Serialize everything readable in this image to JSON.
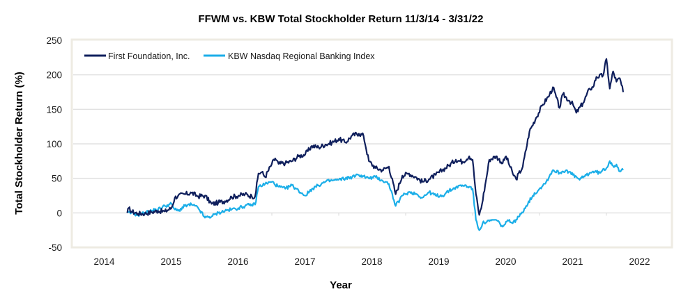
{
  "chart_data": {
    "type": "line",
    "title": "FFWM vs. KBW Total Stockholder Return 11/3/14 - 3/31/22",
    "xlabel": "Year",
    "ylabel": "Total Stockholder Return (%)",
    "xlim": [
      2014,
      2023
    ],
    "ylim": [
      -50,
      250
    ],
    "x_ticks": [
      "2014",
      "2015",
      "2016",
      "2017",
      "2018",
      "2019",
      "2020",
      "2021",
      "2022"
    ],
    "y_ticks": [
      250,
      200,
      150,
      100,
      50,
      0,
      -50
    ],
    "grid": "horizontal",
    "legend_position": "top-left",
    "series": [
      {
        "name": "First Foundation, Inc.",
        "color": "#0F1F5C",
        "points": [
          [
            2014.84,
            0
          ],
          [
            2014.86,
            7
          ],
          [
            2014.9,
            2
          ],
          [
            2015.0,
            -1
          ],
          [
            2015.1,
            -1
          ],
          [
            2015.2,
            1
          ],
          [
            2015.3,
            3
          ],
          [
            2015.4,
            2
          ],
          [
            2015.5,
            7
          ],
          [
            2015.55,
            22
          ],
          [
            2015.6,
            25
          ],
          [
            2015.7,
            27
          ],
          [
            2015.8,
            29
          ],
          [
            2015.9,
            24
          ],
          [
            2016.0,
            25
          ],
          [
            2016.1,
            13
          ],
          [
            2016.2,
            15
          ],
          [
            2016.3,
            17
          ],
          [
            2016.4,
            23
          ],
          [
            2016.5,
            25
          ],
          [
            2016.6,
            27
          ],
          [
            2016.7,
            24
          ],
          [
            2016.75,
            24
          ],
          [
            2016.8,
            57
          ],
          [
            2016.85,
            59
          ],
          [
            2016.9,
            52
          ],
          [
            2017.0,
            71
          ],
          [
            2017.05,
            79
          ],
          [
            2017.1,
            71
          ],
          [
            2017.2,
            72
          ],
          [
            2017.3,
            75
          ],
          [
            2017.4,
            82
          ],
          [
            2017.5,
            85
          ],
          [
            2017.6,
            97
          ],
          [
            2017.7,
            95
          ],
          [
            2017.8,
            99
          ],
          [
            2017.9,
            102
          ],
          [
            2018.0,
            107
          ],
          [
            2018.1,
            102
          ],
          [
            2018.2,
            112
          ],
          [
            2018.3,
            115
          ],
          [
            2018.37,
            112
          ],
          [
            2018.45,
            75
          ],
          [
            2018.55,
            65
          ],
          [
            2018.65,
            62
          ],
          [
            2018.75,
            67
          ],
          [
            2018.85,
            27
          ],
          [
            2018.95,
            54
          ],
          [
            2019.05,
            57
          ],
          [
            2019.15,
            52
          ],
          [
            2019.25,
            45
          ],
          [
            2019.35,
            49
          ],
          [
            2019.45,
            55
          ],
          [
            2019.55,
            62
          ],
          [
            2019.65,
            69
          ],
          [
            2019.75,
            77
          ],
          [
            2019.85,
            74
          ],
          [
            2019.95,
            82
          ],
          [
            2020.0,
            77
          ],
          [
            2020.05,
            27
          ],
          [
            2020.1,
            -3
          ],
          [
            2020.13,
            7
          ],
          [
            2020.2,
            47
          ],
          [
            2020.25,
            77
          ],
          [
            2020.35,
            82
          ],
          [
            2020.45,
            72
          ],
          [
            2020.5,
            82
          ],
          [
            2020.6,
            57
          ],
          [
            2020.65,
            49
          ],
          [
            2020.75,
            67
          ],
          [
            2020.85,
            118
          ],
          [
            2020.95,
            138
          ],
          [
            2021.05,
            157
          ],
          [
            2021.15,
            171
          ],
          [
            2021.2,
            182
          ],
          [
            2021.3,
            152
          ],
          [
            2021.35,
            172
          ],
          [
            2021.45,
            162
          ],
          [
            2021.5,
            157
          ],
          [
            2021.55,
            145
          ],
          [
            2021.65,
            159
          ],
          [
            2021.75,
            180
          ],
          [
            2021.8,
            182
          ],
          [
            2021.85,
            197
          ],
          [
            2021.95,
            199
          ],
          [
            2022.0,
            223
          ],
          [
            2022.05,
            180
          ],
          [
            2022.1,
            205
          ],
          [
            2022.15,
            190
          ],
          [
            2022.2,
            195
          ],
          [
            2022.25,
            175
          ]
        ]
      },
      {
        "name": "KBW Nasdaq Regional Banking Index",
        "color": "#1BAEE8",
        "points": [
          [
            2014.84,
            0
          ],
          [
            2014.9,
            0
          ],
          [
            2015.0,
            -3
          ],
          [
            2015.1,
            0
          ],
          [
            2015.2,
            3
          ],
          [
            2015.3,
            5
          ],
          [
            2015.4,
            10
          ],
          [
            2015.5,
            13
          ],
          [
            2015.55,
            5
          ],
          [
            2015.6,
            3
          ],
          [
            2015.7,
            10
          ],
          [
            2015.8,
            12
          ],
          [
            2015.9,
            7
          ],
          [
            2016.0,
            -7
          ],
          [
            2016.1,
            -5
          ],
          [
            2016.2,
            0
          ],
          [
            2016.3,
            3
          ],
          [
            2016.4,
            5
          ],
          [
            2016.5,
            7
          ],
          [
            2016.6,
            10
          ],
          [
            2016.7,
            12
          ],
          [
            2016.75,
            12
          ],
          [
            2016.8,
            38
          ],
          [
            2016.9,
            42
          ],
          [
            2017.0,
            45
          ],
          [
            2017.1,
            38
          ],
          [
            2017.2,
            35
          ],
          [
            2017.3,
            40
          ],
          [
            2017.4,
            32
          ],
          [
            2017.5,
            25
          ],
          [
            2017.6,
            35
          ],
          [
            2017.7,
            40
          ],
          [
            2017.8,
            45
          ],
          [
            2017.9,
            47
          ],
          [
            2018.0,
            48
          ],
          [
            2018.1,
            50
          ],
          [
            2018.2,
            52
          ],
          [
            2018.3,
            55
          ],
          [
            2018.37,
            53
          ],
          [
            2018.45,
            50
          ],
          [
            2018.55,
            52
          ],
          [
            2018.65,
            47
          ],
          [
            2018.75,
            42
          ],
          [
            2018.85,
            10
          ],
          [
            2018.95,
            25
          ],
          [
            2019.05,
            30
          ],
          [
            2019.15,
            28
          ],
          [
            2019.25,
            22
          ],
          [
            2019.35,
            30
          ],
          [
            2019.45,
            25
          ],
          [
            2019.55,
            25
          ],
          [
            2019.65,
            32
          ],
          [
            2019.75,
            37
          ],
          [
            2019.85,
            40
          ],
          [
            2019.95,
            38
          ],
          [
            2020.0,
            35
          ],
          [
            2020.05,
            -10
          ],
          [
            2020.1,
            -25
          ],
          [
            2020.15,
            -15
          ],
          [
            2020.25,
            -12
          ],
          [
            2020.35,
            -10
          ],
          [
            2020.45,
            -20
          ],
          [
            2020.55,
            -10
          ],
          [
            2020.6,
            -15
          ],
          [
            2020.7,
            -5
          ],
          [
            2020.8,
            10
          ],
          [
            2020.9,
            25
          ],
          [
            2021.0,
            35
          ],
          [
            2021.1,
            45
          ],
          [
            2021.2,
            62
          ],
          [
            2021.3,
            58
          ],
          [
            2021.4,
            62
          ],
          [
            2021.5,
            55
          ],
          [
            2021.6,
            48
          ],
          [
            2021.7,
            55
          ],
          [
            2021.8,
            60
          ],
          [
            2021.9,
            58
          ],
          [
            2022.0,
            65
          ],
          [
            2022.05,
            75
          ],
          [
            2022.1,
            68
          ],
          [
            2022.15,
            70
          ],
          [
            2022.2,
            60
          ],
          [
            2022.25,
            62
          ]
        ]
      }
    ]
  }
}
